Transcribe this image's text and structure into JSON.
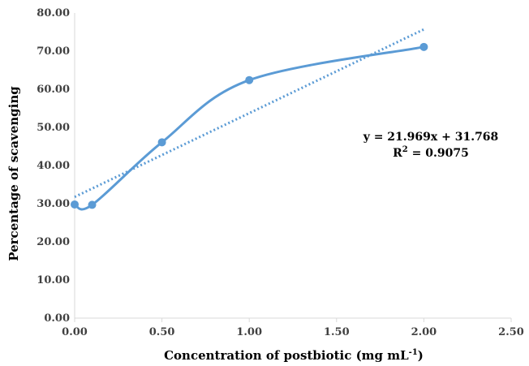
{
  "chart_data": {
    "type": "scatter",
    "title": "",
    "xlabel_main": "Concentration of postbiotic (mg mL",
    "xlabel_sup": "-1",
    "xlabel_close": ")",
    "ylabel": "Percentage of scavenging",
    "xlim": [
      0,
      2.5
    ],
    "ylim": [
      0,
      80
    ],
    "xticks": [
      0,
      0.5,
      1.0,
      1.5,
      2.0,
      2.5
    ],
    "yticks": [
      0,
      10,
      20,
      30,
      40,
      50,
      60,
      70,
      80
    ],
    "x_tick_labels": [
      "0.00",
      "0.50",
      "1.00",
      "1.50",
      "2.00",
      "2.50"
    ],
    "y_tick_labels": [
      "0.00",
      "10.00",
      "20.00",
      "30.00",
      "40.00",
      "50.00",
      "60.00",
      "70.00",
      "80.00"
    ],
    "series": [
      {
        "name": "Percentage of scavenging",
        "x": [
          0.0,
          0.1,
          0.5,
          1.0,
          2.0
        ],
        "y": [
          29.8,
          29.7,
          46.1,
          62.4,
          71.1
        ],
        "color": "#5B9BD5",
        "smooth": true
      }
    ],
    "trendline": {
      "type": "linear",
      "slope": 21.969,
      "intercept": 31.768,
      "x_range": [
        0,
        2.0
      ],
      "color": "#5B9BD5",
      "style": "dotted",
      "equation_label": "y = 21.969x + 31.768",
      "r2_label_prefix": "R",
      "r2_label_sup": "2",
      "r2_label_value": " = 0.9075"
    }
  }
}
